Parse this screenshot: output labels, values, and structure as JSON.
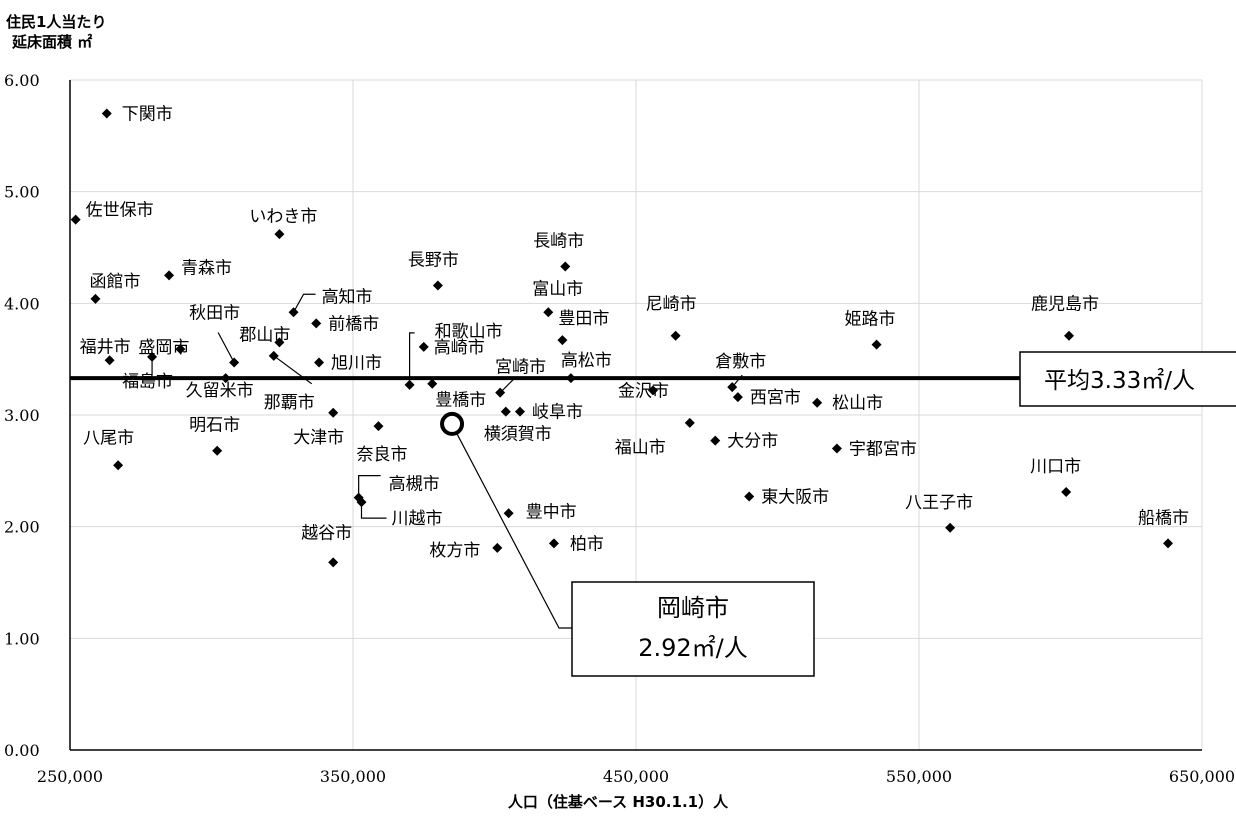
{
  "chart_data": {
    "type": "scatter",
    "ylabel": [
      "住民1人当たり",
      "延床面積 ㎡"
    ],
    "xlabel": "人口（住基ベース H30.1.1）人",
    "xlim": [
      250000,
      650000
    ],
    "ylim": [
      0,
      6
    ],
    "x_ticks": [
      250000,
      350000,
      450000,
      550000,
      650000
    ],
    "x_tick_labels": [
      "250,000",
      "350,000",
      "450,000",
      "550,000",
      "650,000"
    ],
    "y_ticks": [
      0,
      1,
      2,
      3,
      4,
      5,
      6
    ],
    "y_tick_labels": [
      "0.00",
      "1.00",
      "2.00",
      "3.00",
      "4.00",
      "5.00",
      "6.00"
    ],
    "grid": true,
    "points": [
      {
        "label": "下関市",
        "x": 263000,
        "y": 5.7
      },
      {
        "label": "佐世保市",
        "x": 252000,
        "y": 4.75
      },
      {
        "label": "いわき市",
        "x": 324000,
        "y": 4.62
      },
      {
        "label": "函館市",
        "x": 259000,
        "y": 4.04
      },
      {
        "label": "青森市",
        "x": 285000,
        "y": 4.25
      },
      {
        "label": "長野市",
        "x": 380000,
        "y": 4.16
      },
      {
        "label": "長崎市",
        "x": 425000,
        "y": 4.33
      },
      {
        "label": "高知市",
        "x": 329000,
        "y": 3.92
      },
      {
        "label": "前橋市",
        "x": 337000,
        "y": 3.82
      },
      {
        "label": "富山市",
        "x": 419000,
        "y": 3.92
      },
      {
        "label": "尼崎市",
        "x": 464000,
        "y": 3.71
      },
      {
        "label": "姫路市",
        "x": 535000,
        "y": 3.63
      },
      {
        "label": "鹿児島市",
        "x": 603000,
        "y": 3.71
      },
      {
        "label": "秋田市",
        "x": 308000,
        "y": 3.47
      },
      {
        "label": "郡山市",
        "x": 324000,
        "y": 3.65
      },
      {
        "label": "福井市",
        "x": 264000,
        "y": 3.49
      },
      {
        "label": "盛岡市",
        "x": 289000,
        "y": 3.59
      },
      {
        "label": "旭川市",
        "x": 338000,
        "y": 3.47
      },
      {
        "label": "和歌山市",
        "x": 370000,
        "y": 3.27
      },
      {
        "label": "高崎市",
        "x": 375000,
        "y": 3.61
      },
      {
        "label": "豊田市",
        "x": 424000,
        "y": 3.67
      },
      {
        "label": "宮崎市",
        "x": 402000,
        "y": 3.2
      },
      {
        "label": "高松市",
        "x": 427000,
        "y": 3.33
      },
      {
        "label": "倉敷市",
        "x": 484000,
        "y": 3.25
      },
      {
        "label": "福島市",
        "x": 279000,
        "y": 3.52
      },
      {
        "label": "久留米市",
        "x": 305000,
        "y": 3.33
      },
      {
        "label": "那覇市",
        "x": 322000,
        "y": 3.53
      },
      {
        "label": "豊橋市",
        "x": 378000,
        "y": 3.28
      },
      {
        "label": "金沢市",
        "x": 456000,
        "y": 3.22
      },
      {
        "label": "西宮市",
        "x": 486000,
        "y": 3.16
      },
      {
        "label": "松山市",
        "x": 514000,
        "y": 3.11
      },
      {
        "label": "大津市",
        "x": 343000,
        "y": 3.02
      },
      {
        "label": "横須賀市",
        "x": 404000,
        "y": 3.03
      },
      {
        "label": "岐阜市",
        "x": 409000,
        "y": 3.03
      },
      {
        "label": "福山市",
        "x": 469000,
        "y": 2.93
      },
      {
        "label": "八尾市",
        "x": 267000,
        "y": 2.55
      },
      {
        "label": "明石市",
        "x": 302000,
        "y": 2.68
      },
      {
        "label": "奈良市",
        "x": 359000,
        "y": 2.9
      },
      {
        "label": "大分市",
        "x": 478000,
        "y": 2.77
      },
      {
        "label": "宇都宮市",
        "x": 521000,
        "y": 2.7
      },
      {
        "label": "川口市",
        "x": 602000,
        "y": 2.31
      },
      {
        "label": "高槻市",
        "x": 352000,
        "y": 2.26
      },
      {
        "label": "川越市",
        "x": 353000,
        "y": 2.22
      },
      {
        "label": "東大阪市",
        "x": 490000,
        "y": 2.27
      },
      {
        "label": "八王子市",
        "x": 561000,
        "y": 1.99
      },
      {
        "label": "豊中市",
        "x": 405000,
        "y": 2.12
      },
      {
        "label": "船橋市",
        "x": 638000,
        "y": 1.85
      },
      {
        "label": "越谷市",
        "x": 343000,
        "y": 1.68
      },
      {
        "label": "枚方市",
        "x": 401000,
        "y": 1.81
      },
      {
        "label": "柏市",
        "x": 421000,
        "y": 1.85
      }
    ],
    "highlight": {
      "x": 385000,
      "y": 2.92,
      "callout_lines": [
        "岡崎市",
        "2.92㎡/人"
      ]
    },
    "average": {
      "y": 3.33,
      "label": "平均3.33㎡/人"
    }
  }
}
